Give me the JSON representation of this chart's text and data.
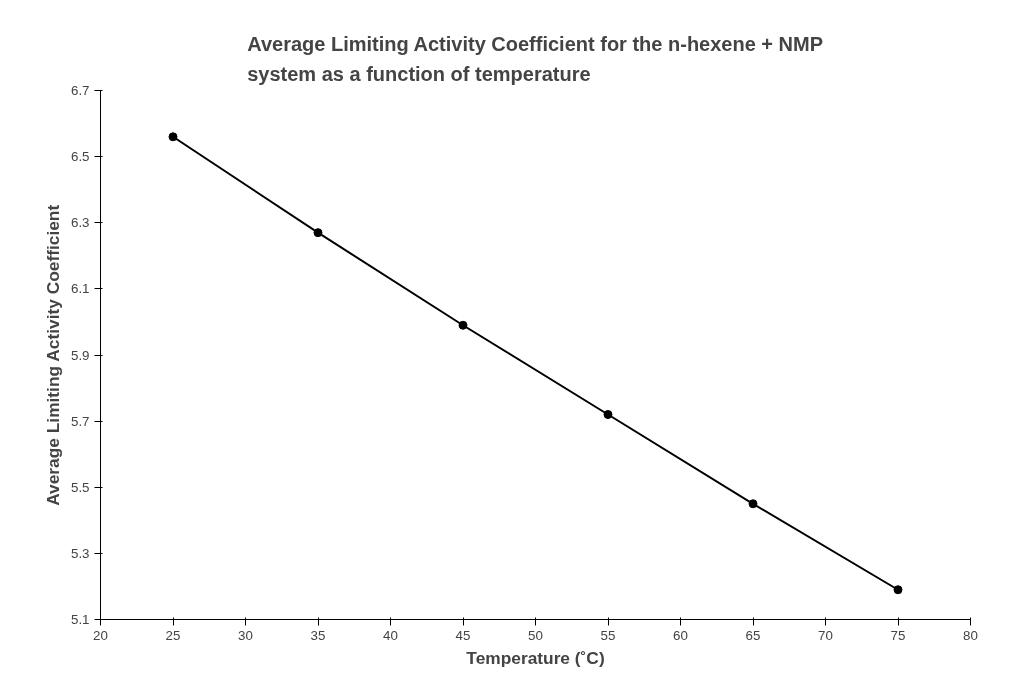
{
  "chart_data": {
    "type": "line",
    "title": "Average Limiting Activity Coefficient for the n-hexene + NMP\nsystem as a function of temperature",
    "xlabel": "Temperature (˚C)",
    "ylabel": "Average Limiting Activity Coefficient",
    "x": [
      25,
      35,
      45,
      55,
      65,
      75
    ],
    "series": [
      {
        "color": "#000000",
        "values": [
          6.56,
          6.27,
          5.99,
          5.72,
          5.45,
          5.19
        ]
      }
    ],
    "xlim": [
      20,
      80
    ],
    "xticks": [
      20,
      25,
      30,
      35,
      40,
      45,
      50,
      55,
      60,
      65,
      70,
      75,
      80
    ],
    "ylim": [
      5.1,
      6.7
    ],
    "yticks": [
      5.1,
      5.3,
      5.5,
      5.7,
      5.9,
      6.1,
      6.3,
      6.5,
      6.7
    ],
    "marker": "circle",
    "line_style": "solid",
    "grid": false
  }
}
